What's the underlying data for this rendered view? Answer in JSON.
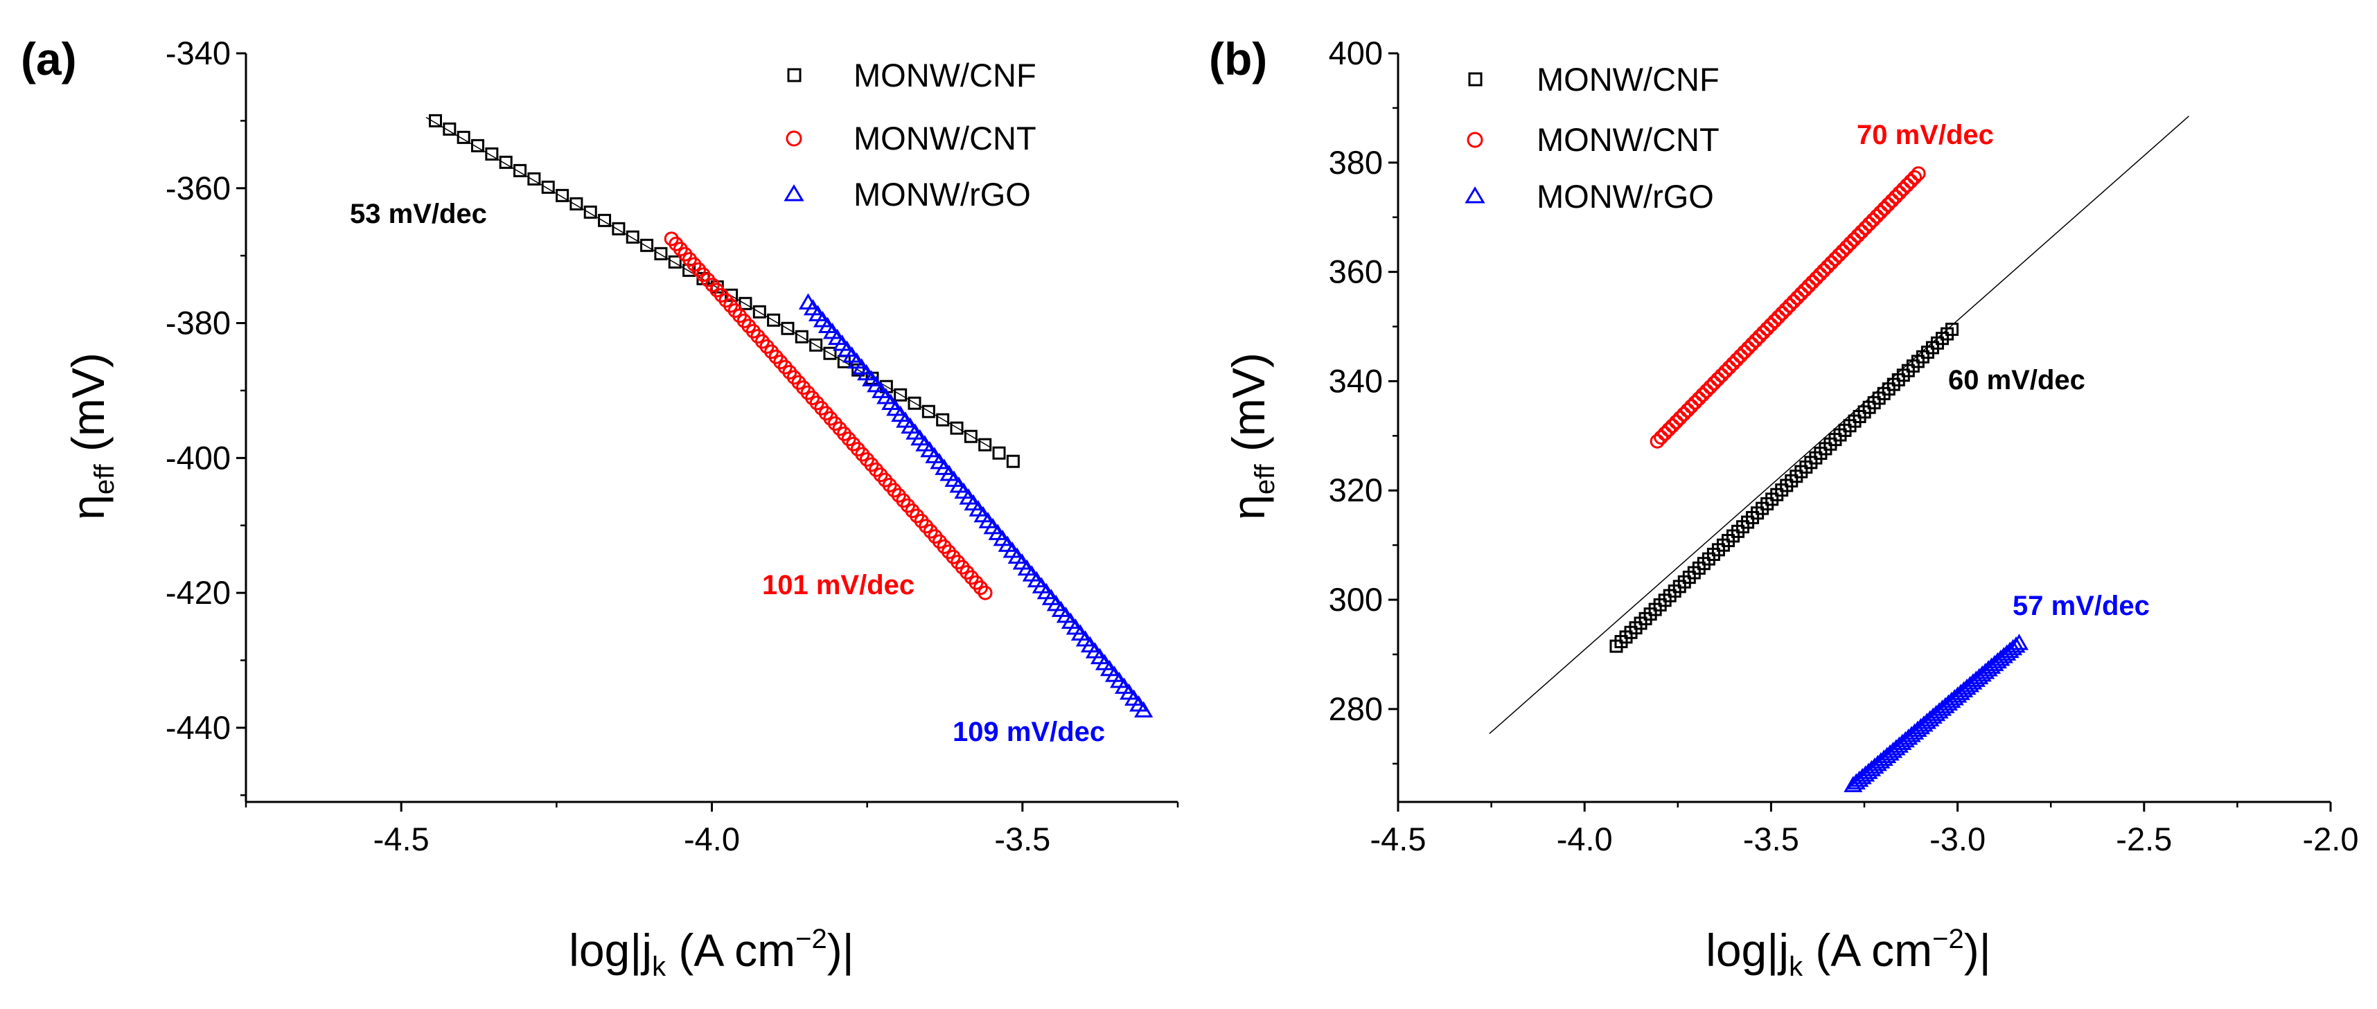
{
  "chart_data": [
    {
      "type": "scatter",
      "panel_label": "(a)",
      "xlabel": {
        "prefix": "log|j",
        "sub": "k",
        "units": " (A cm",
        "sup": "−2",
        "close": ")|"
      },
      "ylabel": {
        "prefix": "η",
        "sub": "eff",
        "units": " (mV)"
      },
      "xlim": [
        -4.75,
        -3.25
      ],
      "ylim": [
        -451,
        -340
      ],
      "xticks": [
        -4.5,
        -4.0,
        -3.5
      ],
      "xtick_labels": [
        "-4.5",
        "-4.0",
        "-3.5"
      ],
      "yticks": [
        -440,
        -420,
        -400,
        -380,
        -360,
        -340
      ],
      "ytick_labels": [
        "-440",
        "-420",
        "-400",
        "-380",
        "-360",
        "-340"
      ],
      "legend_position": "top-right",
      "series": [
        {
          "name": "MONW/CNF",
          "marker": "square",
          "color": "#000000",
          "x_start": -4.445,
          "x_end": -3.515,
          "y_start": -350,
          "y_end": -400.5,
          "points": 42,
          "slope_label": "53 mV/dec"
        },
        {
          "name": "MONW/CNT",
          "marker": "circle",
          "color": "#ff0000",
          "x_start": -4.065,
          "x_end": -3.56,
          "y_start": -367.5,
          "y_end": -420,
          "points": 70,
          "slope_label": "101 mV/dec"
        },
        {
          "name": "MONW/rGO",
          "marker": "triangle",
          "color": "#0000ff",
          "x_start": -3.845,
          "x_end": -3.305,
          "y_start": -377,
          "y_end": -437.5,
          "points": 70,
          "slope_label": "109 mV/dec"
        }
      ],
      "fit_line": {
        "x_start": -4.46,
        "x_end": -3.55,
        "y_start": -349.5,
        "y_end": -398.5
      }
    },
    {
      "type": "scatter",
      "panel_label": "(b)",
      "xlabel": {
        "prefix": "log|j",
        "sub": "k",
        "units": " (A cm",
        "sup": "−2",
        "close": ")|"
      },
      "ylabel": {
        "prefix": "η",
        "sub": "eff",
        "units": " (mV)"
      },
      "xlim": [
        -4.5,
        -2.0
      ],
      "ylim": [
        263,
        400
      ],
      "xticks": [
        -4.5,
        -4.0,
        -3.5,
        -3.0,
        -2.5,
        -2.0
      ],
      "xtick_labels": [
        "-4.5",
        "-4.0",
        "-3.5",
        "-3.0",
        "-2.5",
        "-2.0"
      ],
      "yticks": [
        280,
        300,
        320,
        340,
        360,
        380,
        400
      ],
      "ytick_labels": [
        "280",
        "300",
        "320",
        "340",
        "360",
        "380",
        "400"
      ],
      "legend_position": "top-left",
      "series": [
        {
          "name": "MONW/CNF",
          "marker": "square",
          "color": "#000000",
          "x_start": -3.915,
          "x_end": -3.015,
          "y_start": 291.5,
          "y_end": 349.5,
          "points": 70,
          "slope_label": "60 mV/dec"
        },
        {
          "name": "MONW/CNT",
          "marker": "circle",
          "color": "#ff0000",
          "x_start": -3.805,
          "x_end": -3.105,
          "y_start": 329,
          "y_end": 378,
          "points": 70,
          "slope_label": "70 mV/dec"
        },
        {
          "name": "MONW/rGO",
          "marker": "triangle",
          "color": "#0000ff",
          "x_start": -3.28,
          "x_end": -2.835,
          "y_start": 266,
          "y_end": 292,
          "points": 55,
          "slope_label": "57 mV/dec"
        }
      ],
      "fit_line": {
        "x_start": -4.255,
        "x_end": -2.38,
        "y_start": 275.5,
        "y_end": 388.5
      }
    }
  ]
}
